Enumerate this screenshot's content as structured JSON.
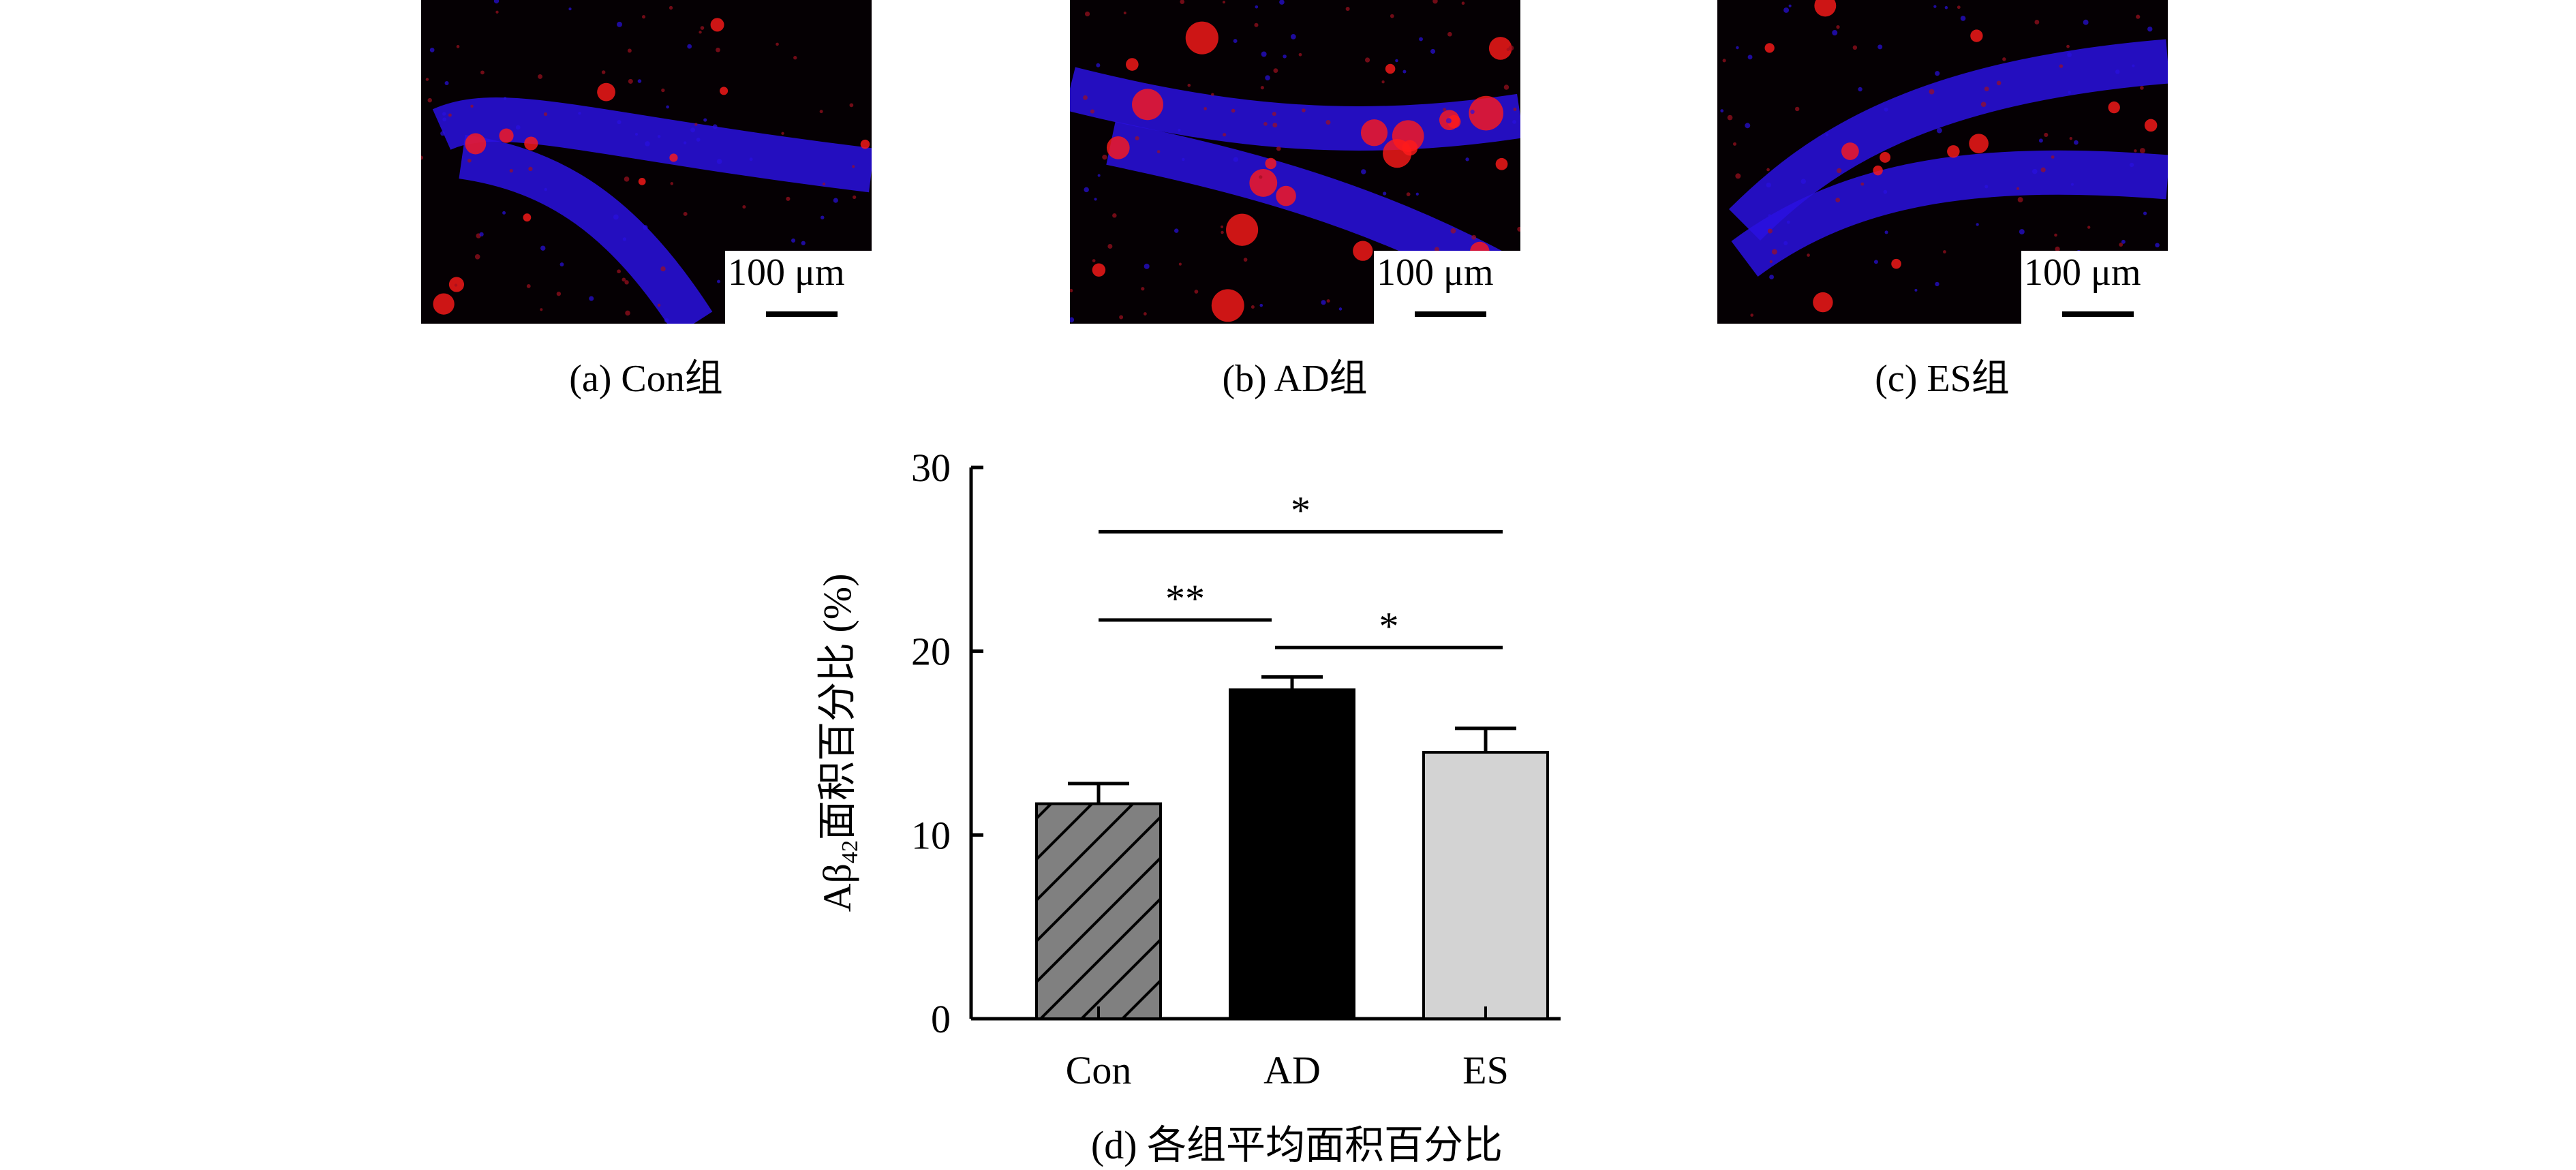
{
  "panels": [
    {
      "caption": "(a) Con组",
      "scale_label": "100 μm"
    },
    {
      "caption": "(b) AD组",
      "scale_label": "100 μm"
    },
    {
      "caption": "(c) ES组",
      "scale_label": "100 μm"
    }
  ],
  "colors": {
    "nuclei": "#2a10e0",
    "plaque": "#ff1a1a",
    "background": "#050003"
  },
  "chart_data": {
    "type": "bar",
    "title": "(d) 各组平均面积百分比",
    "xlabel": "",
    "ylabel": "Aβ42面积百分比 (%)",
    "ylabel_parts": {
      "main": "Aβ",
      "sub": "42",
      "rest": "面积百分比 (%)"
    },
    "categories": [
      "Con",
      "AD",
      "ES"
    ],
    "values": [
      11.7,
      17.9,
      14.5
    ],
    "error_upper": [
      12.8,
      18.6,
      15.8
    ],
    "ylim": [
      0,
      30
    ],
    "yticks": [
      0,
      10,
      20,
      30
    ],
    "grid": false,
    "bar_styles": [
      {
        "fill": "#808080",
        "pattern": "diagonal-hatch"
      },
      {
        "fill": "#000000",
        "pattern": "solid"
      },
      {
        "fill": "#d3d3d3",
        "pattern": "solid"
      }
    ],
    "significance": [
      {
        "from": "Con",
        "to": "ES",
        "label": "*",
        "y": 26.5
      },
      {
        "from": "Con",
        "to": "AD",
        "label": "**",
        "y": 21.7
      },
      {
        "from": "AD",
        "to": "ES",
        "label": "*",
        "y": 20.2
      }
    ]
  }
}
